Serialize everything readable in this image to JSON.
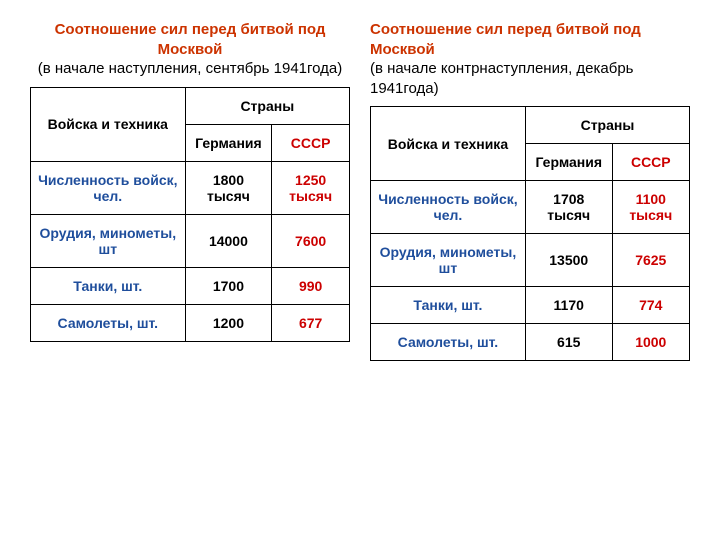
{
  "colors": {
    "title_main": "#cc3300",
    "title_sub": "#000000",
    "row_label": "#1f4e9c",
    "germany": "#000000",
    "ussr_header": "#cc0000",
    "ussr_val": "#cc0000",
    "border": "#000000",
    "background": "#ffffff"
  },
  "fontsize": {
    "title": 15,
    "cell": 14
  },
  "left": {
    "title_main": "Соотношение сил перед битвой под Москвой",
    "title_sub": "(в начале наступления, сентябрь 1941года)",
    "header_troops": "Войска и техника",
    "header_countries": "Страны",
    "header_germany": "Германия",
    "header_ussr": "СССР",
    "rows": [
      {
        "label": "Численность войск, чел.",
        "germany": "1800 тысяч",
        "ussr": "1250 тысяч"
      },
      {
        "label": "Орудия, минометы, шт",
        "germany": "14000",
        "ussr": "7600"
      },
      {
        "label": "Танки, шт.",
        "germany": "1700",
        "ussr": "990"
      },
      {
        "label": "Самолеты, шт.",
        "germany": "1200",
        "ussr": "677"
      }
    ]
  },
  "right": {
    "title_main": "Соотношение сил перед битвой под Москвой",
    "title_sub": "(в начале контрнаступления, декабрь 1941года)",
    "header_troops": "Войска и техника",
    "header_countries": "Страны",
    "header_germany": "Германия",
    "header_ussr": "СССР",
    "rows": [
      {
        "label": "Численность войск, чел.",
        "germany": "1708 тысяч",
        "ussr": "1100 тысяч"
      },
      {
        "label": "Орудия, минометы, шт",
        "germany": "13500",
        "ussr": "7625"
      },
      {
        "label": "Танки, шт.",
        "germany": "1170",
        "ussr": "774"
      },
      {
        "label": "Самолеты, шт.",
        "germany": "615",
        "ussr": "1000"
      }
    ]
  }
}
